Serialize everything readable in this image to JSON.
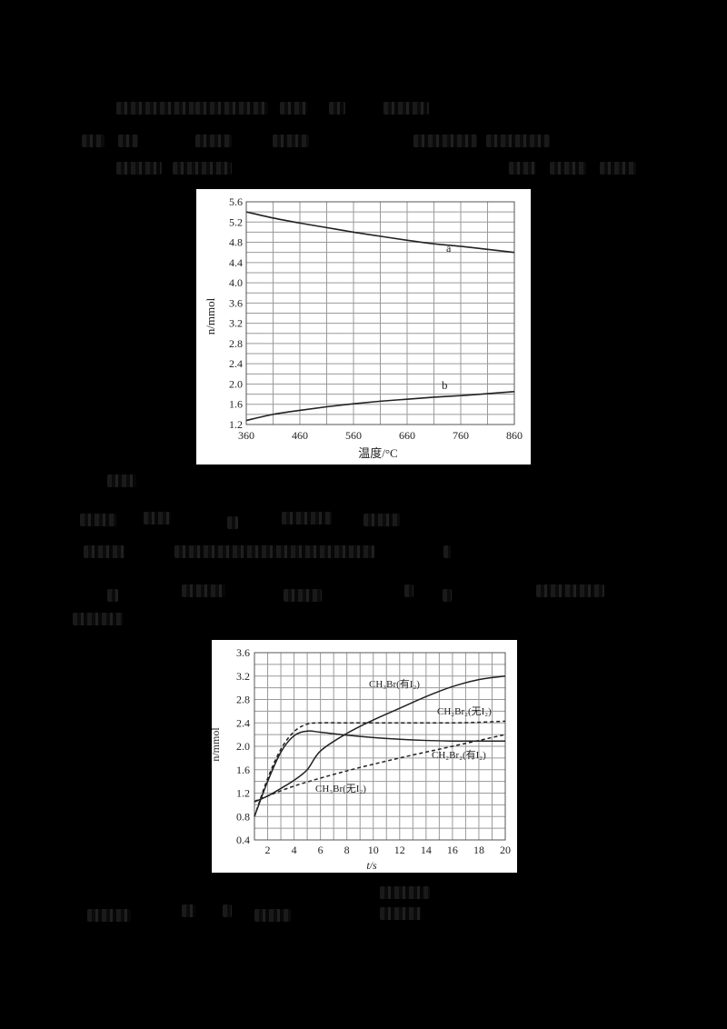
{
  "document": {
    "text_obscured": true
  },
  "chart_data": [
    {
      "type": "line",
      "title": "",
      "xlabel": "温度/°C",
      "ylabel": "n/mmol",
      "xlim": [
        360,
        860
      ],
      "ylim": [
        1.2,
        5.6
      ],
      "x_ticks": [
        "360",
        "460",
        "560",
        "660",
        "760",
        "860"
      ],
      "y_ticks": [
        "1.2",
        "1.6",
        "2.0",
        "2.4",
        "2.8",
        "3.2",
        "3.6",
        "4.0",
        "4.4",
        "4.8",
        "5.2",
        "5.6"
      ],
      "grid": true,
      "x": [
        360,
        410,
        460,
        510,
        560,
        610,
        660,
        710,
        760,
        810,
        860
      ],
      "series": [
        {
          "name": "a",
          "style": "solid",
          "values": [
            5.4,
            5.28,
            5.18,
            5.09,
            5.0,
            4.92,
            4.84,
            4.77,
            4.72,
            4.66,
            4.6
          ]
        },
        {
          "name": "b",
          "style": "solid",
          "values": [
            1.28,
            1.4,
            1.48,
            1.55,
            1.61,
            1.66,
            1.7,
            1.74,
            1.77,
            1.81,
            1.85
          ]
        }
      ]
    },
    {
      "type": "line",
      "title": "",
      "xlabel": "t/s",
      "ylabel": "n/mmol",
      "xlim": [
        1,
        20
      ],
      "ylim": [
        0.4,
        3.6
      ],
      "x_ticks": [
        "2",
        "4",
        "6",
        "8",
        "10",
        "12",
        "14",
        "16",
        "18",
        "20"
      ],
      "y_ticks": [
        "0.4",
        "0.8",
        "1.2",
        "1.6",
        "2.0",
        "2.4",
        "2.8",
        "3.2",
        "3.6"
      ],
      "grid": true,
      "series": [
        {
          "name": "CH₃Br(有I₂)",
          "style": "solid",
          "x": [
            1,
            2,
            3,
            4,
            5,
            6,
            8,
            10,
            12,
            14,
            16,
            18,
            20
          ],
          "values": [
            1.05,
            1.15,
            1.28,
            1.42,
            1.6,
            1.92,
            2.22,
            2.45,
            2.65,
            2.85,
            3.02,
            3.14,
            3.2
          ]
        },
        {
          "name": "CH₂Br₂(无I₂)",
          "style": "dashed",
          "x": [
            1,
            2,
            3,
            4,
            5,
            6,
            8,
            10,
            12,
            14,
            16,
            18,
            20
          ],
          "values": [
            0.8,
            1.45,
            1.95,
            2.25,
            2.38,
            2.4,
            2.4,
            2.4,
            2.4,
            2.4,
            2.4,
            2.41,
            2.43
          ]
        },
        {
          "name": "CH₂Br₂(有I₂)",
          "style": "solid",
          "x": [
            1,
            2,
            3,
            4,
            5,
            6,
            8,
            10,
            12,
            14,
            16,
            18,
            20
          ],
          "values": [
            0.8,
            1.4,
            1.9,
            2.18,
            2.26,
            2.24,
            2.19,
            2.15,
            2.12,
            2.1,
            2.09,
            2.09,
            2.09
          ]
        },
        {
          "name": "CH₃Br(无I₂)",
          "style": "dashed",
          "x": [
            1,
            4,
            8,
            12,
            16,
            20
          ],
          "values": [
            1.06,
            1.32,
            1.58,
            1.8,
            2.0,
            2.2
          ]
        }
      ]
    }
  ],
  "chart1": {
    "ylabel": "n/mmol",
    "xlabel": "温度/°C",
    "label_a": "a",
    "label_b": "b",
    "y_ticks": [
      "5.6",
      "5.2",
      "4.8",
      "4.4",
      "4.0",
      "3.6",
      "3.2",
      "2.8",
      "2.4",
      "2.0",
      "1.6",
      "1.2"
    ],
    "x_ticks": [
      "360",
      "460",
      "560",
      "660",
      "760",
      "860"
    ]
  },
  "chart2": {
    "ylabel": "n/mmol",
    "xlabel": "t/s",
    "y_ticks": [
      "3.6",
      "3.2",
      "2.8",
      "2.4",
      "2.0",
      "1.6",
      "1.2",
      "0.8",
      "0.4"
    ],
    "x_ticks": [
      "2",
      "4",
      "6",
      "8",
      "10",
      "12",
      "14",
      "16",
      "18",
      "20"
    ],
    "labels": {
      "ch3br_with_i2": "CH₃Br(有I₂)",
      "ch2br2_without_i2": "CH₂Br₂(无I₂)",
      "ch2br2_with_i2": "CH₂Br₂(有I₂)",
      "ch3br_without_i2": "CH₃Br(无I₂)"
    }
  }
}
